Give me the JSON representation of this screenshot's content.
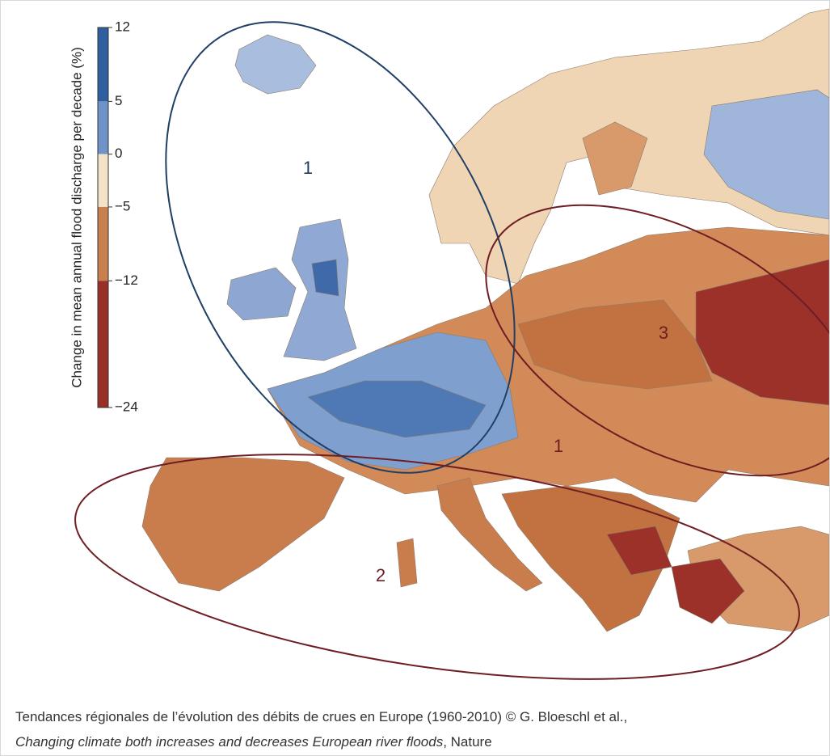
{
  "colorbar": {
    "label": "Change in mean annual flood discharge per decade (%)",
    "lim": [
      -24,
      12
    ],
    "ticks": [
      12,
      5,
      0,
      {
        "value": -5,
        "label": "−5"
      },
      {
        "value": -12,
        "label": "−12"
      },
      {
        "value": -24,
        "label": "−24"
      }
    ],
    "colors": [
      "#2f5f9e",
      "#6f93c6",
      "#f3e1c8",
      "#c9804f",
      "#983028",
      "#7f1e1a"
    ]
  },
  "regions": [
    {
      "label": "1"
    },
    {
      "label": "2"
    },
    {
      "label": "3"
    },
    {
      "label": "1"
    }
  ],
  "caption": {
    "line1": "Tendances régionales de l’évolution des débits de crues en Europe (1960-2010) © G. Bloeschl et al.,",
    "title": "Changing climate both increases and decreases European river floods",
    "source": ", Nature"
  }
}
